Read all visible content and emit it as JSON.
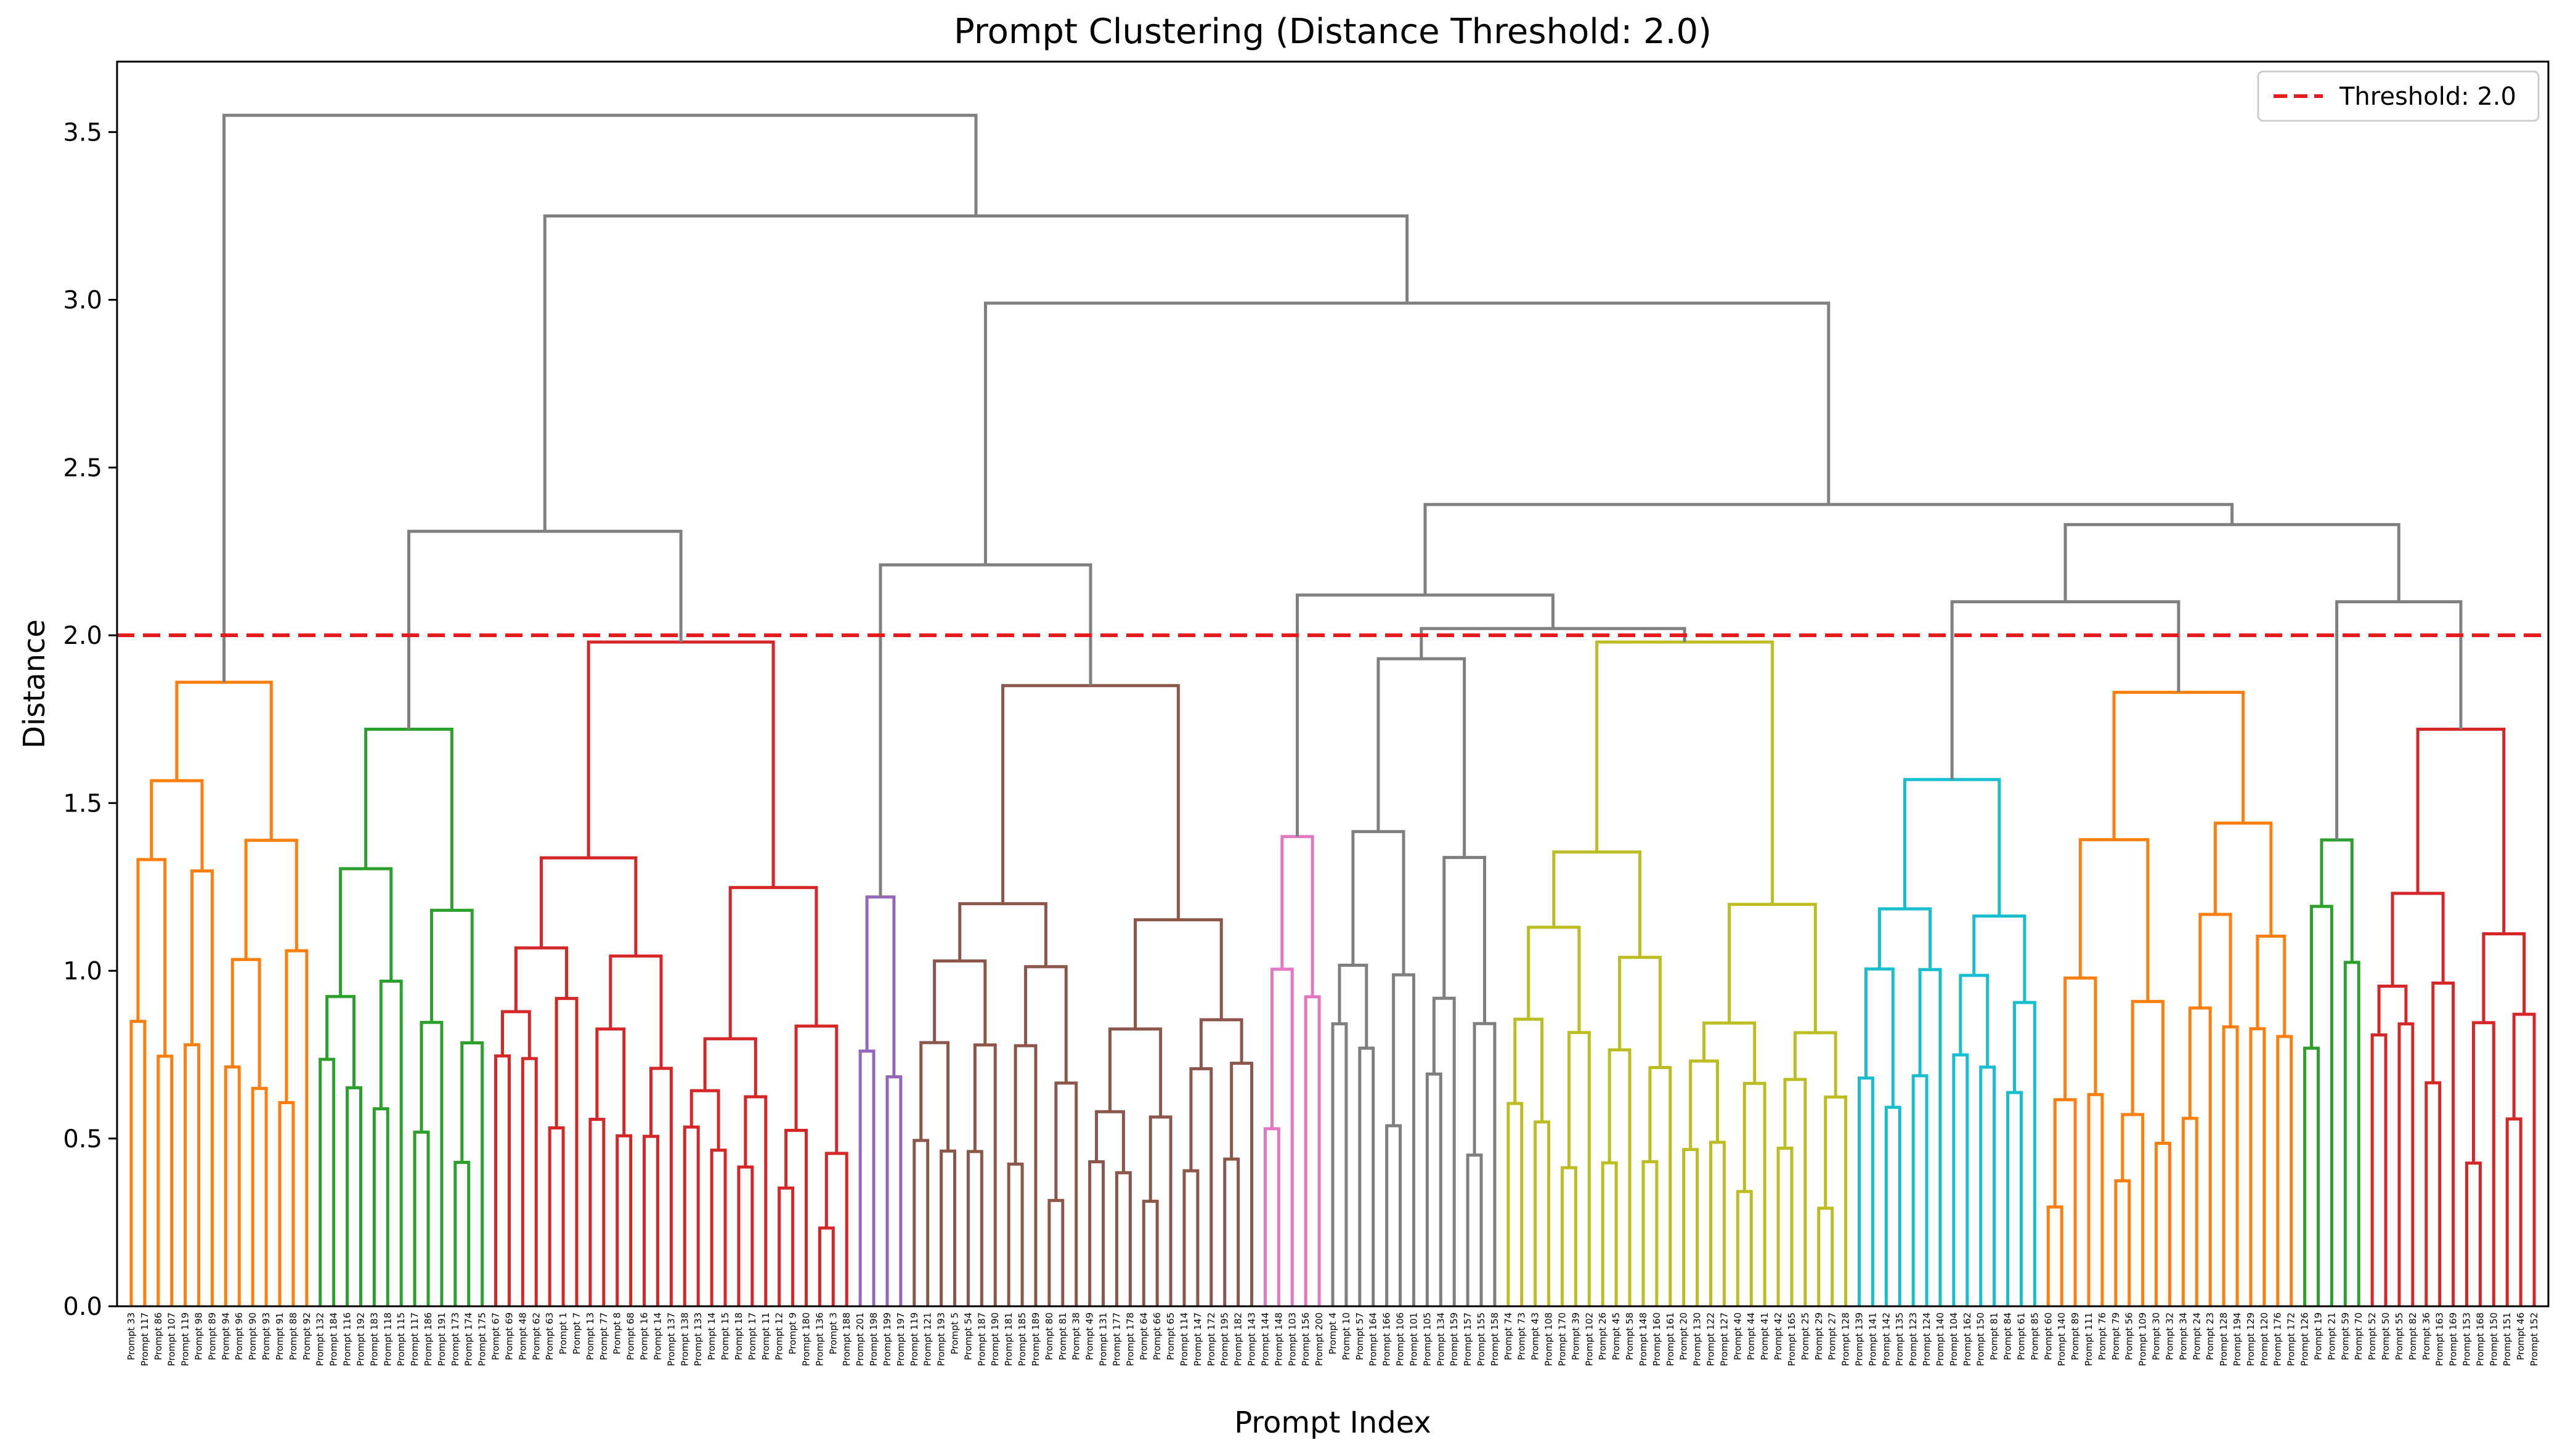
{
  "chart_data": {
    "type": "dendrogram",
    "title": "Prompt Clustering (Distance Threshold: 2.0)",
    "xlabel": "Prompt Index",
    "ylabel": "Distance",
    "ylim": [
      0,
      3.71
    ],
    "yticks": [
      0.0,
      0.5,
      1.0,
      1.5,
      2.0,
      2.5,
      3.0,
      3.5
    ],
    "ytick_labels": [
      "0.0",
      "0.5",
      "1.0",
      "1.5",
      "2.0",
      "2.5",
      "3.0",
      "3.5"
    ],
    "threshold": {
      "value": 2.0,
      "color": "#e41a1c",
      "style": "dashed",
      "label": "Threshold: 2.0"
    },
    "legend": {
      "position": "top-right",
      "entries": [
        "Threshold: 2.0"
      ]
    },
    "colors": {
      "above_threshold": "#808080"
    },
    "grid": false,
    "leaves": [
      "Prompt 33",
      "Prompt 117",
      "Prompt 86",
      "Prompt 107",
      "Prompt 119",
      "Prompt 98",
      "Prompt 89",
      "Prompt 94",
      "Prompt 96",
      "Prompt 90",
      "Prompt 93",
      "Prompt 91",
      "Prompt 88",
      "Prompt 92",
      "Prompt 132",
      "Prompt 184",
      "Prompt 116",
      "Prompt 192",
      "Prompt 183",
      "Prompt 118",
      "Prompt 115",
      "Prompt 117",
      "Prompt 186",
      "Prompt 191",
      "Prompt 173",
      "Prompt 174",
      "Prompt 175",
      "Prompt 67",
      "Prompt 69",
      "Prompt 48",
      "Prompt 62",
      "Prompt 63",
      "Prompt 1",
      "Prompt 7",
      "Prompt 13",
      "Prompt 77",
      "Prompt 8",
      "Prompt 68",
      "Prompt 16",
      "Prompt 14",
      "Prompt 137",
      "Prompt 138",
      "Prompt 133",
      "Prompt 14",
      "Prompt 15",
      "Prompt 18",
      "Prompt 17",
      "Prompt 11",
      "Prompt 12",
      "Prompt 9",
      "Prompt 180",
      "Prompt 136",
      "Prompt 3",
      "Prompt 188",
      "Prompt 201",
      "Prompt 198",
      "Prompt 199",
      "Prompt 197",
      "Prompt 119",
      "Prompt 121",
      "Prompt 193",
      "Prompt 5",
      "Prompt 54",
      "Prompt 187",
      "Prompt 190",
      "Prompt 181",
      "Prompt 185",
      "Prompt 189",
      "Prompt 80",
      "Prompt 81",
      "Prompt 38",
      "Prompt 49",
      "Prompt 131",
      "Prompt 177",
      "Prompt 178",
      "Prompt 64",
      "Prompt 66",
      "Prompt 65",
      "Prompt 114",
      "Prompt 147",
      "Prompt 172",
      "Prompt 195",
      "Prompt 182",
      "Prompt 143",
      "Prompt 144",
      "Prompt 148",
      "Prompt 103",
      "Prompt 156",
      "Prompt 200",
      "Prompt 4",
      "Prompt 10",
      "Prompt 57",
      "Prompt 164",
      "Prompt 166",
      "Prompt 106",
      "Prompt 101",
      "Prompt 105",
      "Prompt 134",
      "Prompt 159",
      "Prompt 157",
      "Prompt 155",
      "Prompt 158",
      "Prompt 74",
      "Prompt 73",
      "Prompt 43",
      "Prompt 108",
      "Prompt 170",
      "Prompt 39",
      "Prompt 102",
      "Prompt 26",
      "Prompt 45",
      "Prompt 58",
      "Prompt 148",
      "Prompt 160",
      "Prompt 161",
      "Prompt 20",
      "Prompt 130",
      "Prompt 122",
      "Prompt 127",
      "Prompt 40",
      "Prompt 44",
      "Prompt 41",
      "Prompt 42",
      "Prompt 165",
      "Prompt 25",
      "Prompt 29",
      "Prompt 27",
      "Prompt 128",
      "Prompt 139",
      "Prompt 141",
      "Prompt 142",
      "Prompt 135",
      "Prompt 123",
      "Prompt 124",
      "Prompt 140",
      "Prompt 104",
      "Prompt 162",
      "Prompt 150",
      "Prompt 81",
      "Prompt 84",
      "Prompt 61",
      "Prompt 85",
      "Prompt 60",
      "Prompt 140",
      "Prompt 89",
      "Prompt 111",
      "Prompt 76",
      "Prompt 79",
      "Prompt 56",
      "Prompt 109",
      "Prompt 30",
      "Prompt 32",
      "Prompt 34",
      "Prompt 24",
      "Prompt 23",
      "Prompt 128",
      "Prompt 194",
      "Prompt 129",
      "Prompt 120",
      "Prompt 176",
      "Prompt 172",
      "Prompt 126",
      "Prompt 19",
      "Prompt 21",
      "Prompt 59",
      "Prompt 70",
      "Prompt 52",
      "Prompt 50",
      "Prompt 55",
      "Prompt 82",
      "Prompt 36",
      "Prompt 163",
      "Prompt 169",
      "Prompt 153",
      "Prompt 168",
      "Prompt 150",
      "Prompt 151",
      "Prompt 46",
      "Prompt 152"
    ]
  }
}
